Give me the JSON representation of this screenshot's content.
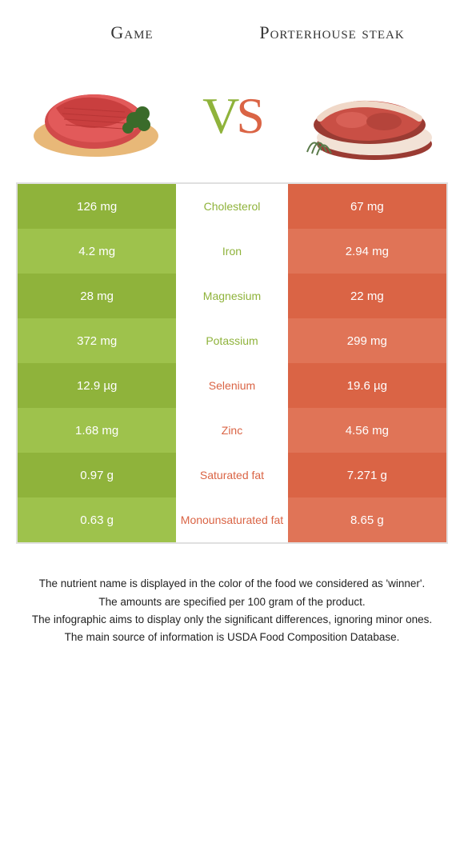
{
  "colors": {
    "green_dark": "#8fb33b",
    "green_light": "#9ec24c",
    "orange_dark": "#da6445",
    "orange_light": "#e07457",
    "label_green": "#8fb33b",
    "label_orange": "#da6445",
    "text": "#333333"
  },
  "header": {
    "left_title": "Game",
    "right_title": "Porterhouse steak",
    "vs_v": "V",
    "vs_s": "S"
  },
  "rows": [
    {
      "left": "126 mg",
      "label": "Cholesterol",
      "right": "67 mg",
      "winner": "left"
    },
    {
      "left": "4.2 mg",
      "label": "Iron",
      "right": "2.94 mg",
      "winner": "left"
    },
    {
      "left": "28 mg",
      "label": "Magnesium",
      "right": "22 mg",
      "winner": "left"
    },
    {
      "left": "372 mg",
      "label": "Potassium",
      "right": "299 mg",
      "winner": "left"
    },
    {
      "left": "12.9 µg",
      "label": "Selenium",
      "right": "19.6 µg",
      "winner": "right"
    },
    {
      "left": "1.68 mg",
      "label": "Zinc",
      "right": "4.56 mg",
      "winner": "right"
    },
    {
      "left": "0.97 g",
      "label": "Saturated fat",
      "right": "7.271 g",
      "winner": "right"
    },
    {
      "left": "0.63 g",
      "label": "Monounsaturated fat",
      "right": "8.65 g",
      "winner": "right"
    }
  ],
  "footnotes": [
    "The nutrient name is displayed in the color of the food we considered as 'winner'.",
    "The amounts are specified per 100 gram of the product.",
    "The infographic aims to display only the significant differences, ignoring minor ones.",
    "The main source of information is USDA Food Composition Database."
  ]
}
